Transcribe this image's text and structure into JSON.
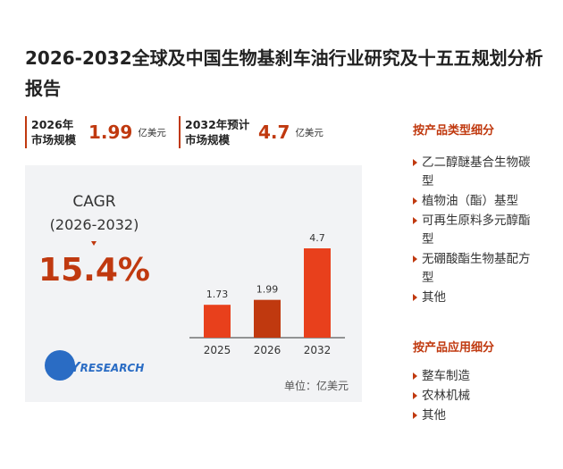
{
  "header": {
    "title": "2026-2032全球及中国生物基刹车油行业研究及十五五规划分析报告"
  },
  "stats": [
    {
      "label": [
        "2026年",
        "市场规模"
      ],
      "value": 1.99,
      "unit": "亿美元"
    },
    {
      "label": [
        "2032年预计",
        "市场规模"
      ],
      "value": 4.7,
      "unit": "亿美元"
    }
  ],
  "cagr": {
    "label": "CAGR",
    "period": "(2026-2032)",
    "value": "15.4%"
  },
  "chart_data": {
    "type": "bar",
    "categories": [
      "2025",
      "2026",
      "2032"
    ],
    "values": [
      1.73,
      1.99,
      4.7
    ],
    "colors": [
      "#e8401c",
      "#c0390f",
      "#e8401c"
    ],
    "unit": "单位：亿美元"
  },
  "logo": {
    "q": "QY",
    "text": "RESEARCH"
  },
  "segments": [
    {
      "title": "按产品类型细分",
      "items": [
        "乙二醇醚基合生物碳型",
        "植物油（酯）基型",
        "可再生原料多元醇酯型",
        "无硼酸酯生物基配方型",
        "其他"
      ]
    },
    {
      "title": "按产品应用细分",
      "items": [
        "整车制造",
        "农林机械",
        "其他"
      ]
    }
  ]
}
